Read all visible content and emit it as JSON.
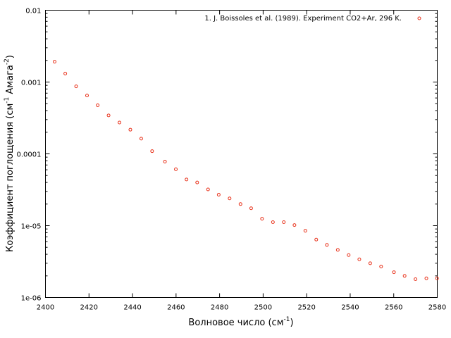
{
  "chart_data": {
    "type": "scatter",
    "title": "",
    "xlabel": {
      "main": "Волновое число (см",
      "sup": "-1",
      "tail": ")"
    },
    "ylabel": {
      "main": "Коэффициент поглощения (см",
      "sup1": "-1",
      "mid": " Амага",
      "sup2": "-2",
      "tail": ")"
    },
    "xlim": [
      2400,
      2580
    ],
    "ylim": [
      1e-06,
      0.01
    ],
    "yscale": "log",
    "grid": false,
    "legend_position": "top-right",
    "x_ticks": [
      2400,
      2420,
      2440,
      2460,
      2480,
      2500,
      2520,
      2540,
      2560,
      2580
    ],
    "y_ticks": [
      {
        "value": 1e-06,
        "label": "1e-06"
      },
      {
        "value": 1e-05,
        "label": "1e-05"
      },
      {
        "value": 0.0001,
        "label": "0.0001"
      },
      {
        "value": 0.001,
        "label": "0.001"
      },
      {
        "value": 0.01,
        "label": "0.01"
      }
    ],
    "series": [
      {
        "name": "1. J. Boissoles et al. (1989). Experiment  CO2+Ar, 296 K.",
        "color": "#e8311a",
        "marker": "circle",
        "points": [
          [
            2404.2,
            0.00192
          ],
          [
            2409.1,
            0.00131
          ],
          [
            2414.1,
            0.00087
          ],
          [
            2419.1,
            0.00065
          ],
          [
            2424.0,
            0.000475
          ],
          [
            2429.0,
            0.000343
          ],
          [
            2434.0,
            0.000273
          ],
          [
            2439.0,
            0.000217
          ],
          [
            2444.0,
            0.000163
          ],
          [
            2449.0,
            0.000109
          ],
          [
            2454.9,
            7.8e-05
          ],
          [
            2459.9,
            6.1e-05
          ],
          [
            2464.8,
            4.4e-05
          ],
          [
            2469.7,
            4e-05
          ],
          [
            2474.7,
            3.2e-05
          ],
          [
            2479.6,
            2.7e-05
          ],
          [
            2484.6,
            2.4e-05
          ],
          [
            2489.6,
            2e-05
          ],
          [
            2494.5,
            1.75e-05
          ],
          [
            2499.5,
            1.25e-05
          ],
          [
            2504.5,
            1.12e-05
          ],
          [
            2509.5,
            1.12e-05
          ],
          [
            2514.4,
            1.02e-05
          ],
          [
            2519.4,
            8.5e-06
          ],
          [
            2524.4,
            6.4e-06
          ],
          [
            2529.3,
            5.4e-06
          ],
          [
            2534.3,
            4.6e-06
          ],
          [
            2539.3,
            3.9e-06
          ],
          [
            2544.2,
            3.4e-06
          ],
          [
            2549.2,
            3e-06
          ],
          [
            2554.2,
            2.7e-06
          ],
          [
            2560.1,
            2.25e-06
          ],
          [
            2565.0,
            2e-06
          ],
          [
            2570.0,
            1.8e-06
          ],
          [
            2575.0,
            1.85e-06
          ],
          [
            2579.9,
            1.85e-06
          ]
        ]
      }
    ]
  }
}
